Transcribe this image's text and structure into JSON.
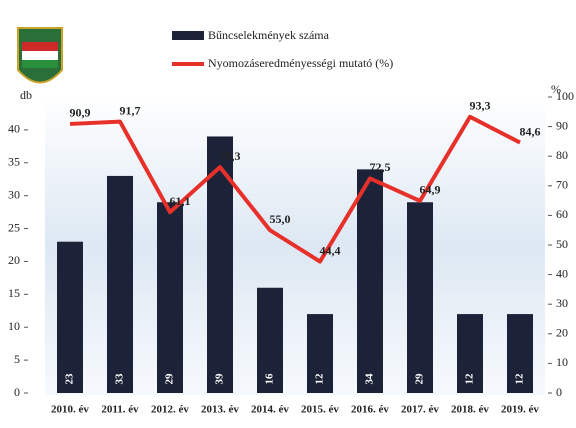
{
  "chart_data": {
    "type": "bar",
    "categories": [
      "2010. év",
      "2011. év",
      "2012. év",
      "2013. év",
      "2014. év",
      "2015. év",
      "2016. év",
      "2017. év",
      "2018. év",
      "2019. év"
    ],
    "series": [
      {
        "name": "Bűncselekmények száma",
        "type": "bar",
        "color": "#1c2238",
        "values": [
          23,
          33,
          29,
          39,
          16,
          12,
          34,
          29,
          12,
          12
        ]
      },
      {
        "name": "Nyomozáseredményességi mutató (%)",
        "type": "line",
        "axis": "y2",
        "color": "#e8302a",
        "values": [
          90.9,
          91.7,
          61.1,
          76.3,
          55.0,
          44.4,
          72.5,
          64.9,
          93.3,
          84.6
        ],
        "value_labels": [
          "90,9",
          "91,7",
          "61,1",
          "76,3",
          "55,0",
          "44,4",
          "72,5",
          "64,9",
          "93,3",
          "84,6"
        ]
      }
    ],
    "y_label": "db",
    "y2_label": "%",
    "ylim": [
      0,
      45
    ],
    "yticks": [
      0,
      5,
      10,
      15,
      20,
      25,
      30,
      35,
      40
    ],
    "y2lim": [
      0,
      100
    ],
    "y2ticks": [
      0,
      10,
      20,
      30,
      40,
      50,
      60,
      70,
      80,
      90,
      100
    ]
  }
}
